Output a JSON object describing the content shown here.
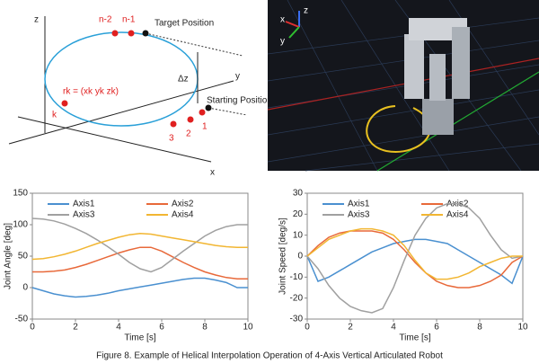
{
  "diagram": {
    "axis_z": "z",
    "axis_y": "y",
    "axis_x": "x",
    "point_n2": "n-2",
    "point_n1": "n-1",
    "target": "Target Position",
    "delta_z": "Δz",
    "start": "Starting Position",
    "position_vector": "rk = (xk yk zk)",
    "point_k": "k",
    "point_3": "3",
    "point_2": "2",
    "point_1": "1"
  },
  "render": {
    "axis_x": "x",
    "axis_y": "y",
    "axis_z": "z"
  },
  "chart_data": [
    {
      "type": "line",
      "ylabel": "Joint Angle [deg]",
      "xlabel": "Time [s]",
      "xlim": [
        0,
        10
      ],
      "xticks": [
        0,
        2,
        4,
        6,
        8,
        10
      ],
      "ylim": [
        -50,
        150
      ],
      "yticks": [
        -50,
        0,
        50,
        100,
        150
      ],
      "x": [
        0,
        0.5,
        1,
        1.5,
        2,
        2.5,
        3,
        3.5,
        4,
        4.5,
        5,
        5.5,
        6,
        6.5,
        7,
        7.5,
        8,
        8.5,
        9,
        9.5,
        10
      ],
      "series": [
        {
          "name": "Axis1",
          "color": "#4a90d0",
          "values": [
            0,
            -5,
            -10,
            -13,
            -15,
            -14,
            -12,
            -9,
            -5,
            -2,
            1,
            4,
            7,
            10,
            13,
            15,
            15,
            12,
            8,
            0,
            0
          ]
        },
        {
          "name": "Axis2",
          "color": "#e8693a",
          "values": [
            25,
            25,
            26,
            28,
            32,
            37,
            43,
            49,
            55,
            60,
            64,
            64,
            58,
            49,
            40,
            32,
            25,
            20,
            16,
            14,
            14
          ]
        },
        {
          "name": "Axis3",
          "color": "#a0a0a0",
          "values": [
            110,
            109,
            106,
            101,
            94,
            86,
            76,
            65,
            53,
            40,
            30,
            25,
            32,
            45,
            58,
            70,
            82,
            91,
            97,
            100,
            100
          ]
        },
        {
          "name": "Axis4",
          "color": "#f2b632",
          "values": [
            45,
            46,
            49,
            53,
            58,
            64,
            70,
            75,
            80,
            84,
            86,
            85,
            82,
            79,
            76,
            73,
            70,
            67,
            65,
            64,
            64
          ]
        }
      ]
    },
    {
      "type": "line",
      "ylabel": "Joint Speed [deg/s]",
      "xlabel": "Time [s]",
      "xlim": [
        0,
        10
      ],
      "xticks": [
        0,
        2,
        4,
        6,
        8,
        10
      ],
      "ylim": [
        -30,
        30
      ],
      "yticks": [
        -30,
        -20,
        -10,
        0,
        10,
        20,
        30
      ],
      "x": [
        0,
        0.5,
        1,
        1.5,
        2,
        2.5,
        3,
        3.5,
        4,
        4.5,
        5,
        5.5,
        6,
        6.5,
        7,
        7.5,
        8,
        8.5,
        9,
        9.5,
        10
      ],
      "series": [
        {
          "name": "Axis1",
          "color": "#4a90d0",
          "values": [
            0,
            -12,
            -10,
            -7,
            -4,
            -1,
            2,
            4,
            6,
            7,
            8,
            8,
            7,
            6,
            3,
            0,
            -3,
            -6,
            -9,
            -13,
            0
          ]
        },
        {
          "name": "Axis2",
          "color": "#e8693a",
          "values": [
            0,
            5,
            9,
            11,
            12,
            12,
            12,
            11,
            8,
            3,
            -3,
            -8,
            -12,
            -14,
            -15,
            -15,
            -14,
            -12,
            -9,
            -3,
            0
          ]
        },
        {
          "name": "Axis3",
          "color": "#a0a0a0",
          "values": [
            0,
            -6,
            -14,
            -20,
            -24,
            -26,
            -27,
            -25,
            -15,
            -2,
            10,
            18,
            23,
            25,
            25,
            23,
            18,
            10,
            3,
            -1,
            0
          ]
        },
        {
          "name": "Axis4",
          "color": "#f2b632",
          "values": [
            0,
            4,
            8,
            10,
            12,
            13,
            13,
            12,
            10,
            5,
            -2,
            -8,
            -11,
            -11,
            -10,
            -8,
            -5,
            -3,
            -1,
            0,
            0
          ]
        }
      ]
    }
  ],
  "caption": "Figure 8.  Example of Helical Interpolation Operation of 4-Axis Vertical Articulated Robot"
}
